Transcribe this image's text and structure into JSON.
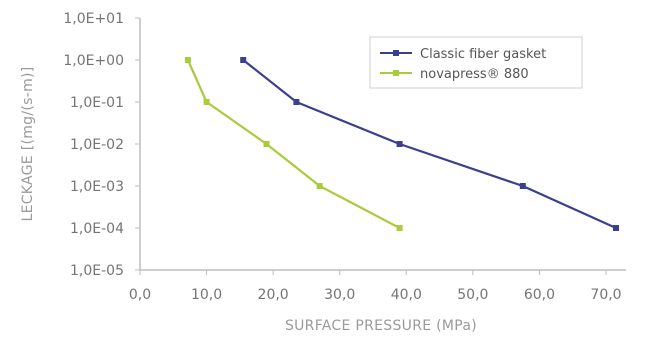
{
  "chart_data": {
    "type": "line",
    "xlabel": "SURFACE PRESSURE  (MPa)",
    "ylabel": "LECKAGE [(mg/(s-m)]",
    "x_ticks": [
      "0,0",
      "10,0",
      "20,0",
      "30,0",
      "40,0",
      "50,0",
      "60,0",
      "70,0"
    ],
    "y_ticks": [
      "1,0E+01",
      "1,0E+00",
      "1,0E-01",
      "1,0E-02",
      "1,0E-03",
      "1,0E-04",
      "1,0E-05"
    ],
    "xlim": [
      0,
      74
    ],
    "ylim": [
      1e-05,
      10
    ],
    "y_scale": "log",
    "grid": false,
    "legend_position": "top-right",
    "series": [
      {
        "name": "Classic fiber gasket",
        "color": "#3b3f8f",
        "marker": "square",
        "x": [
          15.5,
          23.5,
          39.0,
          57.5,
          71.5
        ],
        "y": [
          1,
          0.1,
          0.01,
          0.001,
          0.0001
        ]
      },
      {
        "name": "novapress® 880",
        "color": "#a8cc3c",
        "marker": "square",
        "x": [
          7.2,
          10.0,
          19.0,
          27.0,
          39.0
        ],
        "y": [
          1,
          0.1,
          0.01,
          0.001,
          0.0001
        ]
      }
    ]
  }
}
